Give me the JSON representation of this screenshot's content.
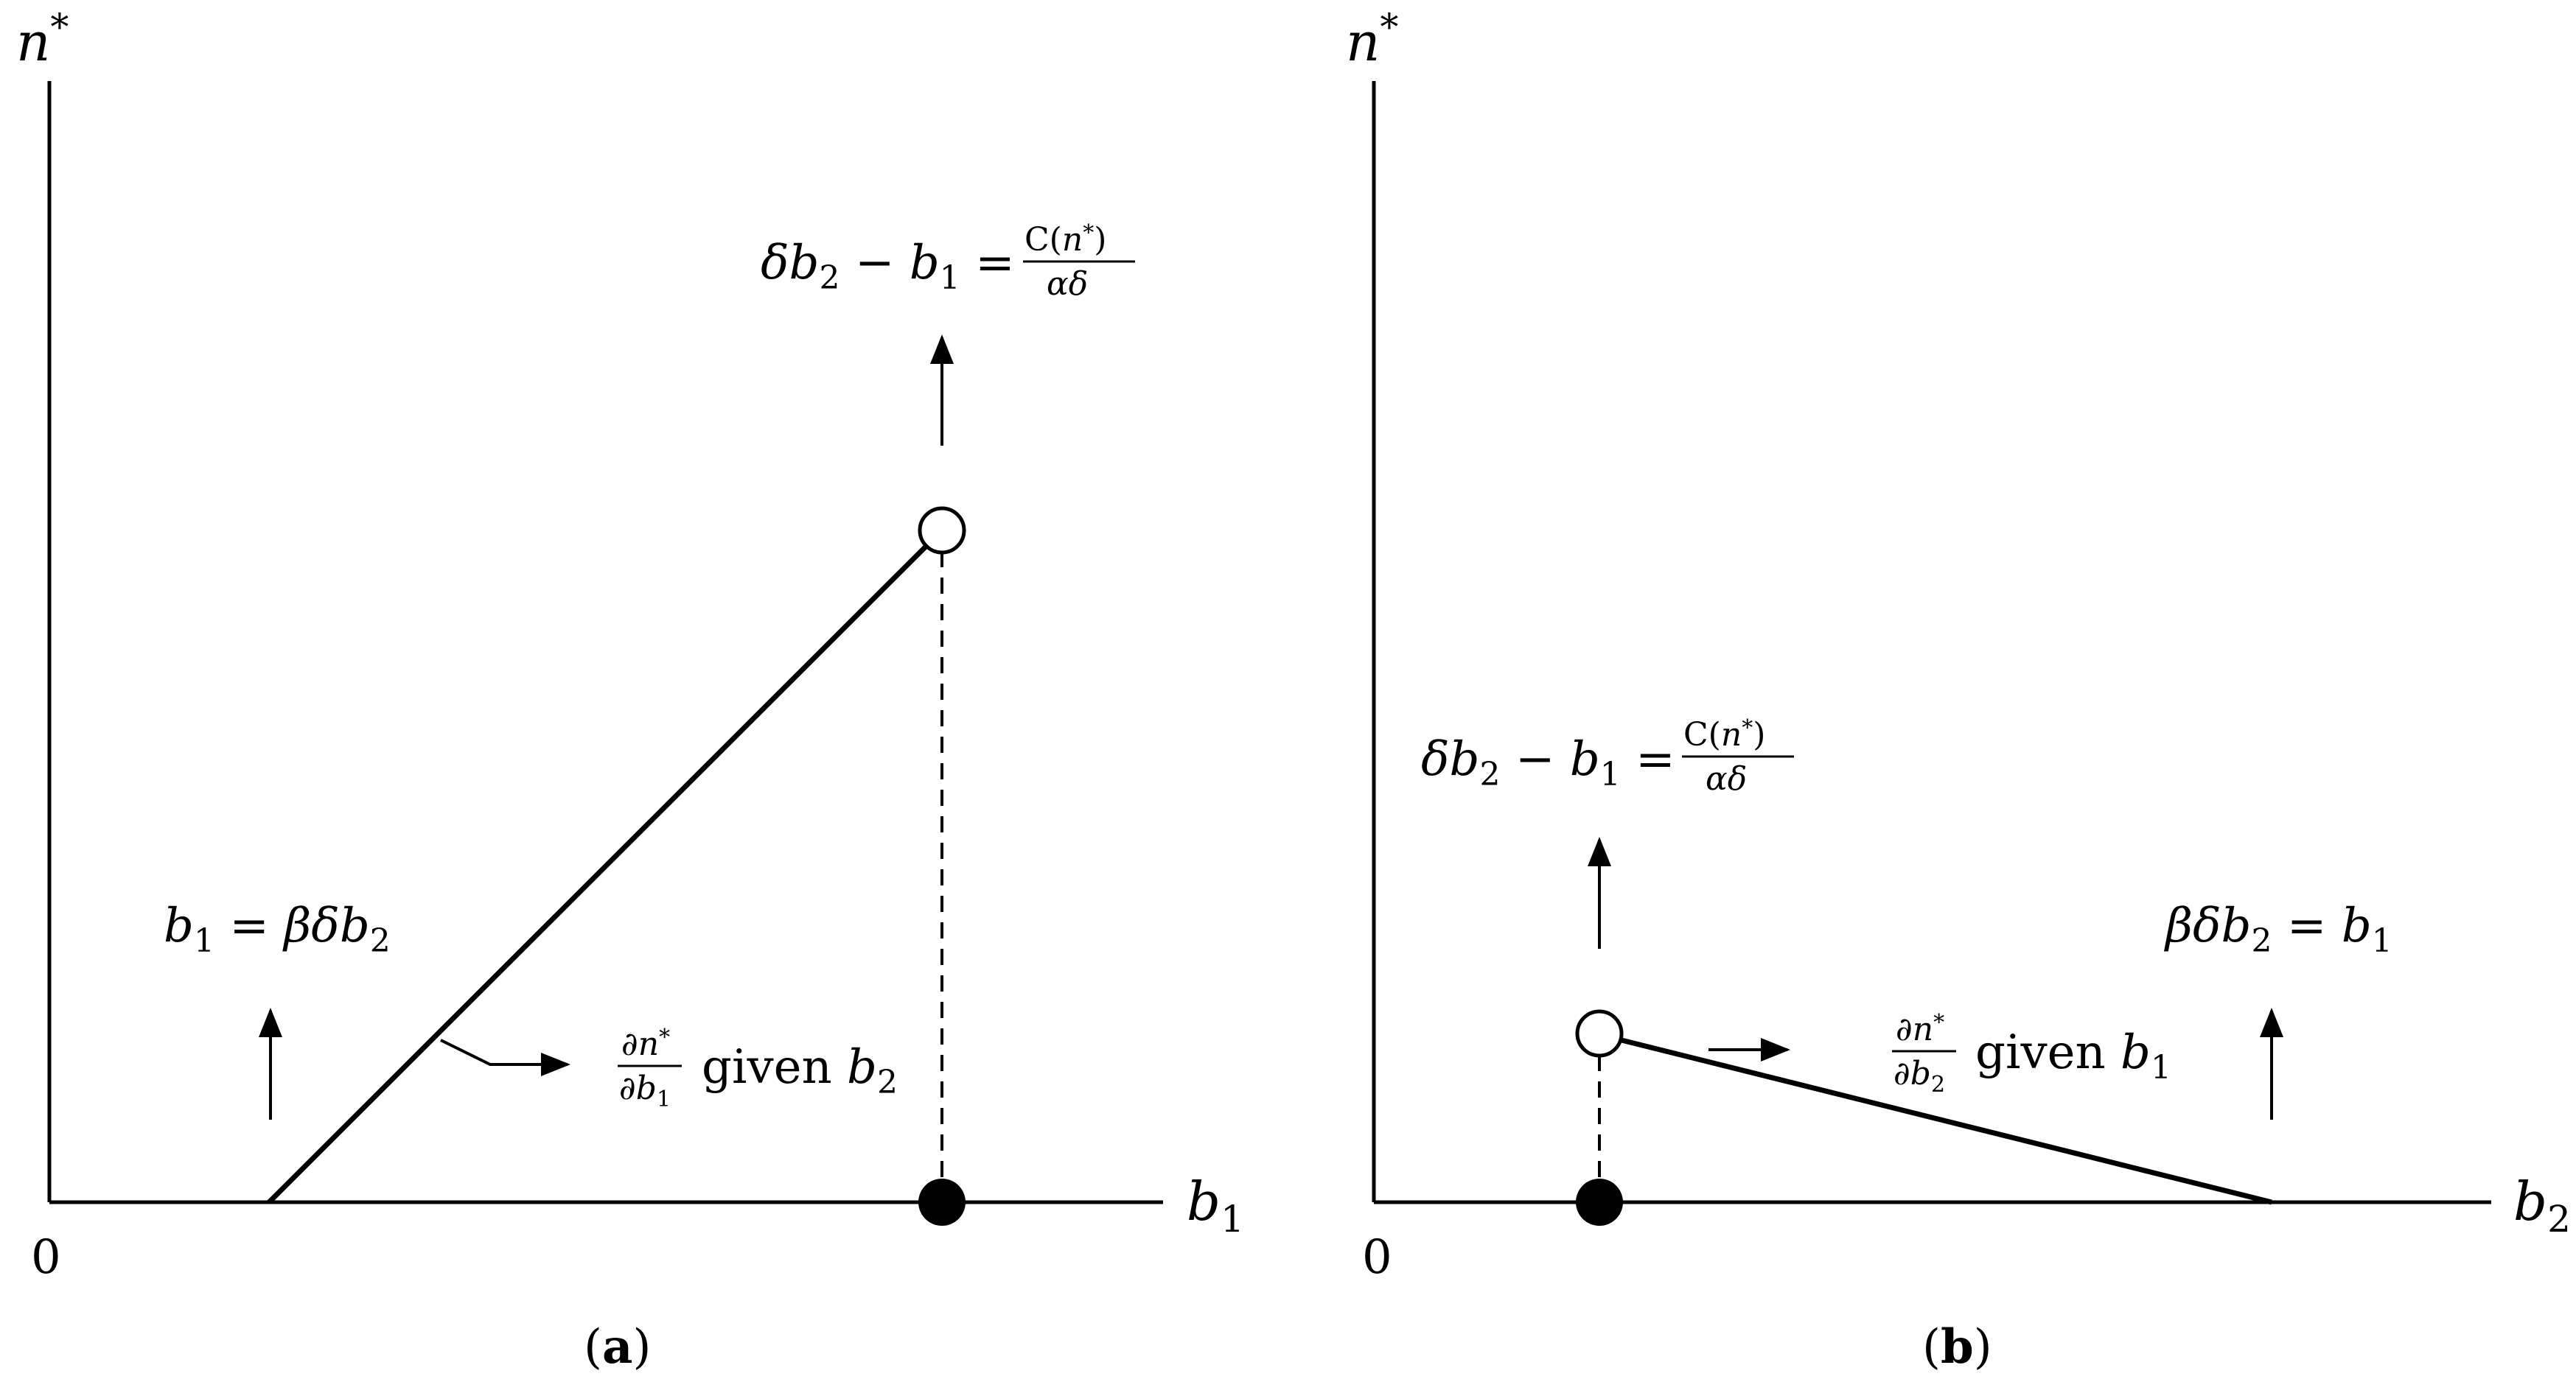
{
  "panel_a": {
    "y_axis_label": "n*",
    "x_axis_label": "b1",
    "origin_label": "0",
    "threshold_label": "b1 = βδb2",
    "upper_bound_label": "δb2 − b1 = C(n*)/(αδ)",
    "slope_label": "∂n*/∂b1 given b2",
    "caption": "(a)"
  },
  "panel_b": {
    "y_axis_label": "n*",
    "x_axis_label": "b2",
    "origin_label": "0",
    "threshold_label": "βδb2 = b1",
    "upper_bound_label": "δb2 − b1 = C(n*)/(αδ)",
    "slope_label": "∂n*/∂b2 given b1",
    "caption": "(b)"
  }
}
